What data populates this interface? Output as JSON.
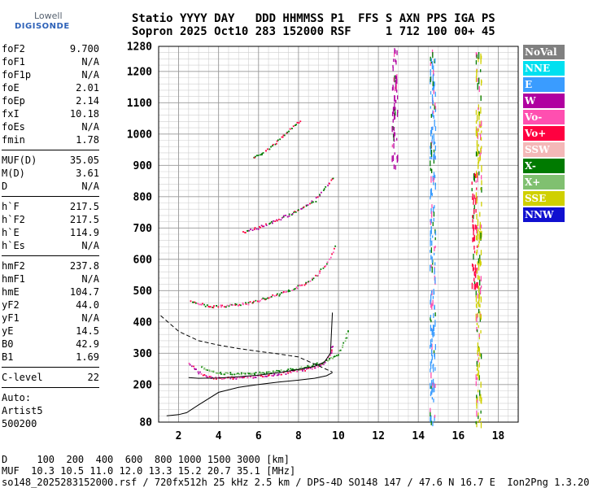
{
  "logo": {
    "brand": "Lowell",
    "product": "DIGISONDE"
  },
  "header": {
    "line1": "Statio YYYY DAY   DDD HHMMSS P1  FFS S AXN PPS IGA PS",
    "line2": "Sopron 2025 Oct10 283 152000 RSF     1 712 100 00+ 45"
  },
  "params": [
    {
      "k": "foF2",
      "v": "9.700"
    },
    {
      "k": "foF1",
      "v": "N/A"
    },
    {
      "k": "foF1p",
      "v": "N/A"
    },
    {
      "k": "foE",
      "v": "2.01"
    },
    {
      "k": "foEp",
      "v": "2.14"
    },
    {
      "k": "fxI",
      "v": "10.18"
    },
    {
      "k": "foEs",
      "v": "N/A"
    },
    {
      "k": "fmin",
      "v": "1.78"
    },
    {
      "sep": true
    },
    {
      "k": "MUF(D)",
      "v": "35.05"
    },
    {
      "k": "M(D)",
      "v": "3.61"
    },
    {
      "k": "D",
      "v": "N/A"
    },
    {
      "sep": true
    },
    {
      "k": "h`F",
      "v": "217.5"
    },
    {
      "k": "h`F2",
      "v": "217.5"
    },
    {
      "k": "h`E",
      "v": "114.9"
    },
    {
      "k": "h`Es",
      "v": "N/A"
    },
    {
      "sep": true
    },
    {
      "k": "hmF2",
      "v": "237.8"
    },
    {
      "k": "hmF1",
      "v": "N/A"
    },
    {
      "k": "hmE",
      "v": "104.7"
    },
    {
      "k": "yF2",
      "v": "44.0"
    },
    {
      "k": "yF1",
      "v": "N/A"
    },
    {
      "k": "yE",
      "v": "14.5"
    },
    {
      "k": "B0",
      "v": "42.9"
    },
    {
      "k": "B1",
      "v": "1.69"
    },
    {
      "sep": true
    },
    {
      "k": "C-level",
      "v": "22"
    },
    {
      "sep": true
    },
    {
      "plain": "Auto:"
    },
    {
      "plain": "Artist5"
    },
    {
      "plain": "500200"
    }
  ],
  "legend": [
    {
      "label": "NoVal",
      "color": "#808080"
    },
    {
      "label": "NNE",
      "color": "#00e0f0"
    },
    {
      "label": "E",
      "color": "#3a9cff"
    },
    {
      "label": "W",
      "color": "#b000a0"
    },
    {
      "label": "Vo-",
      "color": "#ff4fb0"
    },
    {
      "label": "Vo+",
      "color": "#ff0040"
    },
    {
      "label": "SSW",
      "color": "#f4b8b8"
    },
    {
      "label": "X-",
      "color": "#007a00"
    },
    {
      "label": "X+",
      "color": "#80c070"
    },
    {
      "label": "SSE",
      "color": "#d0d000"
    },
    {
      "label": "NNW",
      "color": "#1010d0"
    }
  ],
  "footer": {
    "d_line": "D     100  200  400  600  800 1000 1500 3000 [km]",
    "muf_line": "MUF  10.3 10.5 11.0 12.0 13.3 15.2 20.7 35.1 [MHz]",
    "info_line": "so148_2025283152000.rsf / 720fx512h 25 kHz 2.5 km / DPS-4D SO148 147 / 47.6 N 16.7 E  Ion2Png 1.3.20"
  },
  "chart_data": {
    "type": "scatter",
    "title": "",
    "xlabel": "",
    "ylabel": "",
    "xlim": [
      1.0,
      19.0
    ],
    "ylim": [
      80,
      1280
    ],
    "x_ticks": [
      "2",
      "4",
      "6",
      "8",
      "10",
      "12",
      "14",
      "16",
      "18"
    ],
    "y_ticks": [
      "80",
      "200",
      "300",
      "400",
      "500",
      "600",
      "700",
      "800",
      "900",
      "1000",
      "1100",
      "1200",
      "1280"
    ],
    "grid": true,
    "legend_position": "right",
    "traces": {
      "o_mode_F2": {
        "x": [
          2.5,
          3.0,
          3.5,
          4.0,
          5.0,
          6.0,
          7.0,
          8.0,
          8.5,
          9.0,
          9.3,
          9.6,
          9.7
        ],
        "y": [
          270,
          240,
          226,
          222,
          223,
          228,
          236,
          246,
          252,
          262,
          275,
          300,
          330
        ]
      },
      "x_mode_F2": {
        "x": [
          3.1,
          4.0,
          5.0,
          6.0,
          7.0,
          8.0,
          9.0,
          10.0,
          10.3,
          10.5
        ],
        "y": [
          258,
          238,
          236,
          238,
          244,
          253,
          268,
          300,
          340,
          380
        ]
      },
      "second_hop": {
        "x": [
          2.6,
          3.5,
          4.5,
          5.5,
          6.5,
          7.5,
          8.5,
          9.0,
          9.5,
          9.9
        ],
        "y": [
          470,
          450,
          454,
          462,
          480,
          500,
          532,
          556,
          600,
          650
        ]
      },
      "third_hop": {
        "x": [
          5.2,
          6.0,
          7.0,
          8.0,
          8.8,
          9.2,
          9.8
        ],
        "y": [
          688,
          703,
          730,
          758,
          790,
          820,
          870
        ]
      },
      "fourth_hop": {
        "x": [
          5.7,
          6.5,
          7.3,
          8.1
        ],
        "y": [
          925,
          955,
          1000,
          1050
        ]
      }
    },
    "profile_line": {
      "x": [
        1.4,
        2.0,
        2.4,
        3.0,
        4.0,
        5.0,
        6.0,
        7.0,
        8.0,
        8.8,
        9.4,
        9.7
      ],
      "y": [
        100,
        104,
        110,
        135,
        175,
        191,
        200,
        208,
        214,
        220,
        228,
        238
      ]
    },
    "virtual_height_line": {
      "x": [
        2.5,
        3.0,
        4.0,
        5.0,
        6.0,
        7.0,
        8.0,
        8.8,
        9.3,
        9.6,
        9.7
      ],
      "y": [
        222,
        220,
        221,
        225,
        230,
        238,
        248,
        258,
        272,
        300,
        430
      ]
    },
    "topside_dashed": {
      "x": [
        1.1,
        2.0,
        3.0,
        4.0,
        5.0,
        6.0,
        7.0,
        8.0,
        9.0,
        9.7
      ],
      "y": [
        420,
        370,
        340,
        326,
        315,
        306,
        298,
        288,
        260,
        240
      ]
    },
    "interference_columns": [
      {
        "x": 12.8,
        "y": [
          900,
          1280
        ],
        "color": "#b000a0"
      },
      {
        "x": 14.7,
        "y": [
          80,
          1280
        ],
        "color": "#3a9cff"
      },
      {
        "x": 16.8,
        "y": [
          520,
          880
        ],
        "color": "#ff0040"
      },
      {
        "x": 17.0,
        "y": [
          80,
          1280
        ],
        "color": "#d0d000"
      }
    ]
  }
}
